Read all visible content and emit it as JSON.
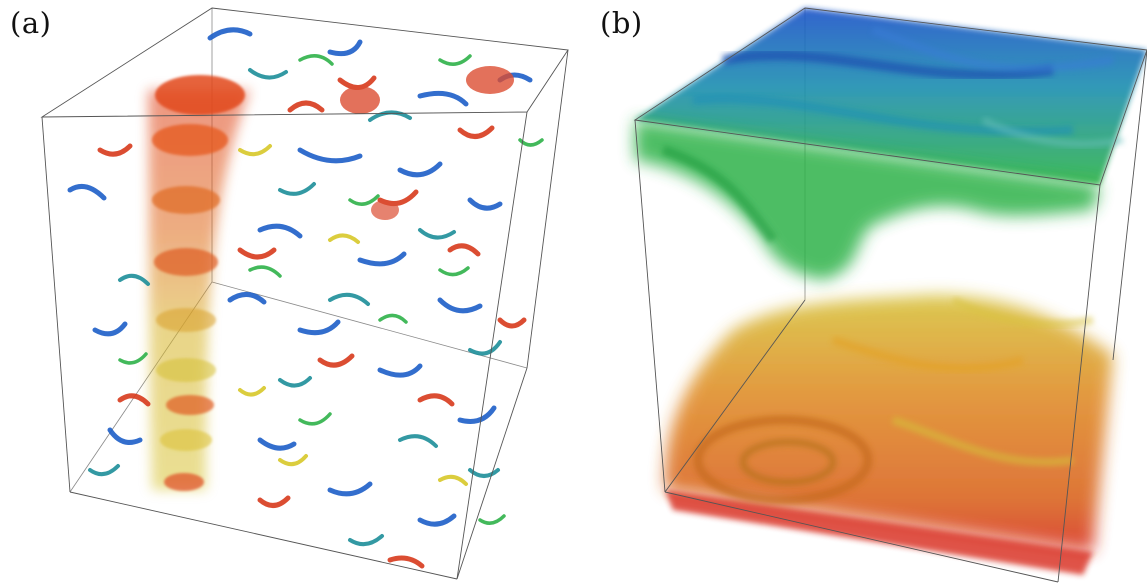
{
  "panels": [
    {
      "label": "(a)"
    },
    {
      "label": "(b)"
    }
  ],
  "colors": {
    "background": "#ffffff",
    "cube_edge": "#555555",
    "red": "#d83a1c",
    "orange": "#e8821e",
    "yellow": "#d8c82a",
    "green": "#2fb24a",
    "teal": "#1d8f9a",
    "blue": "#1d5fc8"
  }
}
